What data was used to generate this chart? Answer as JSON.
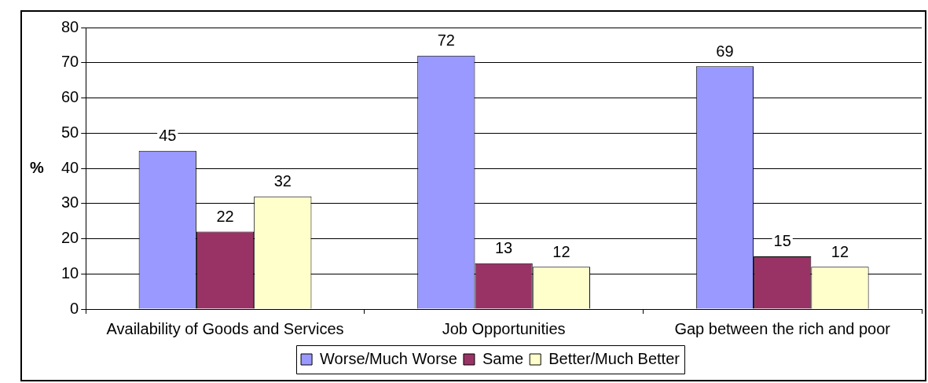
{
  "chart_data": {
    "type": "bar",
    "ylabel": "%",
    "categories": [
      "Availability of Goods and Services",
      "Job Opportunities",
      "Gap between the rich and poor"
    ],
    "series": [
      {
        "name": "Worse/Much Worse",
        "color": "#9999ff",
        "values": [
          45,
          72,
          69
        ]
      },
      {
        "name": "Same",
        "color": "#993366",
        "values": [
          22,
          13,
          15
        ]
      },
      {
        "name": "Better/Much Better",
        "color": "#ffffcc",
        "values": [
          32,
          12,
          12
        ]
      }
    ],
    "ylim": [
      0,
      80
    ],
    "yticks": [
      0,
      10,
      20,
      30,
      40,
      50,
      60,
      70,
      80
    ],
    "grid": "y",
    "legend": "bottom",
    "data_labels": true
  }
}
